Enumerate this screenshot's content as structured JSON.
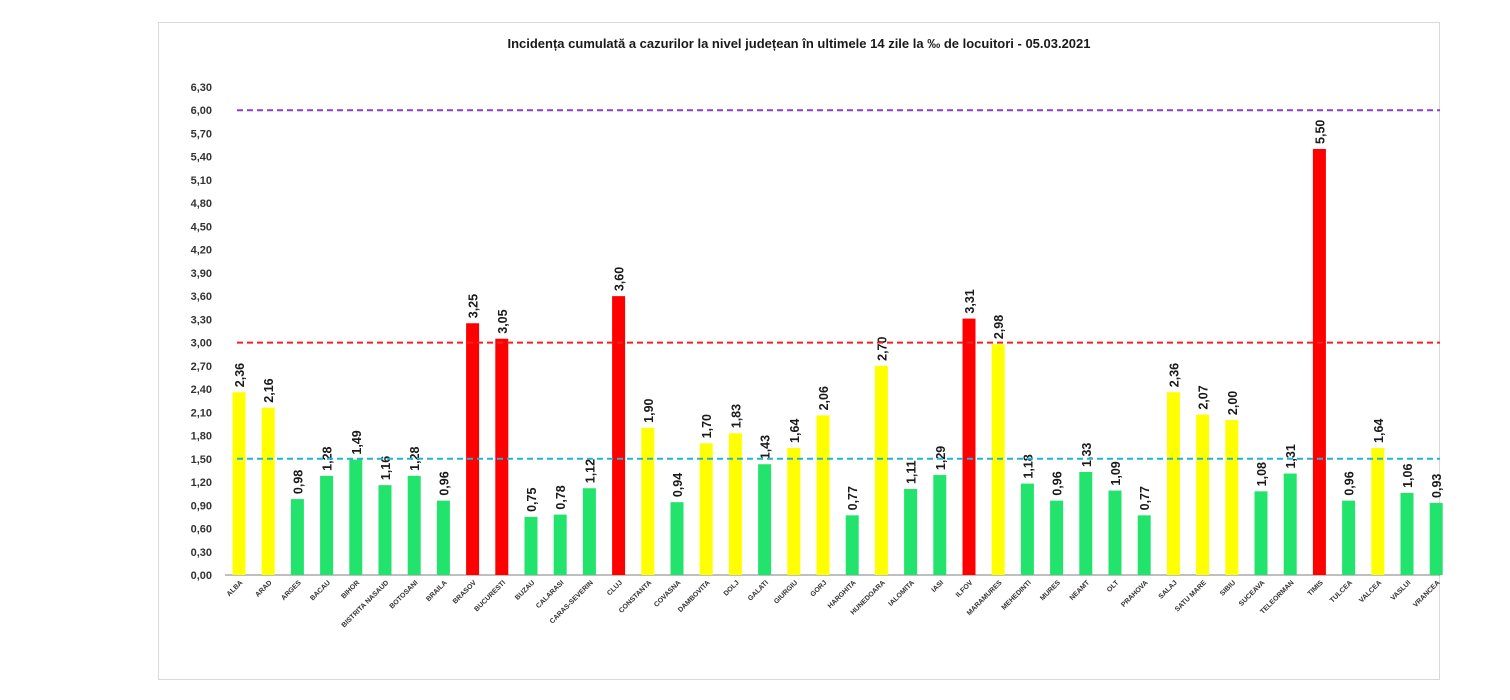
{
  "chart_data": {
    "type": "bar",
    "title": "Incidența cumulată a cazurilor la nivel județean în ultimele 14 zile la ‰ de locuitori - 05.03.2021",
    "xlabel": "",
    "ylabel": "",
    "ylim": [
      0,
      6.3
    ],
    "yticks": [
      "0,00",
      "0,30",
      "0,60",
      "0,90",
      "1,20",
      "1,50",
      "1,80",
      "2,10",
      "2,40",
      "2,70",
      "3,00",
      "3,30",
      "3,60",
      "3,90",
      "4,20",
      "4,50",
      "4,80",
      "5,10",
      "5,40",
      "5,70",
      "6,00",
      "6,30"
    ],
    "grid": false,
    "categories": [
      "ALBA",
      "ARAD",
      "ARGES",
      "BACAU",
      "BIHOR",
      "BISTRITA NASAUD",
      "BOTOSANI",
      "BRAILA",
      "BRASOV",
      "BUCURESTI",
      "BUZAU",
      "CALARASI",
      "CARAS-SEVERIN",
      "CLUJ",
      "CONSTANTA",
      "COVASNA",
      "DAMBOVITA",
      "DOLJ",
      "GALATI",
      "GIURGIU",
      "GORJ",
      "HARGHITA",
      "HUNEDOARA",
      "IALOMITA",
      "IASI",
      "ILFOV",
      "MARAMURES",
      "MEHEDINTI",
      "MURES",
      "NEAMT",
      "OLT",
      "PRAHOVA",
      "SALAJ",
      "SATU MARE",
      "SIBIU",
      "SUCEAVA",
      "TELEORMAN",
      "TIMIS",
      "TULCEA",
      "VALCEA",
      "VASLUI",
      "VRANCEA"
    ],
    "values": [
      2.36,
      2.16,
      0.98,
      1.28,
      1.49,
      1.16,
      1.28,
      0.96,
      3.25,
      3.05,
      0.75,
      0.78,
      1.12,
      3.6,
      1.9,
      0.94,
      1.7,
      1.83,
      1.43,
      1.64,
      2.06,
      0.77,
      2.7,
      1.11,
      1.29,
      3.31,
      2.98,
      1.18,
      0.96,
      1.33,
      1.09,
      0.77,
      2.36,
      2.07,
      2.0,
      1.08,
      1.31,
      5.5,
      0.96,
      1.64,
      1.06,
      0.93
    ],
    "value_labels": [
      "2,36",
      "2,16",
      "0,98",
      "1,28",
      "1,49",
      "1,16",
      "1,28",
      "0,96",
      "3,25",
      "3,05",
      "0,75",
      "0,78",
      "1,12",
      "3,60",
      "1,90",
      "0,94",
      "1,70",
      "1,83",
      "1,43",
      "1,64",
      "2,06",
      "0,77",
      "2,70",
      "1,11",
      "1,29",
      "3,31",
      "2,98",
      "1,18",
      "0,96",
      "1,33",
      "1,09",
      "0,77",
      "2,36",
      "2,07",
      "2,00",
      "1,08",
      "1,31",
      "5,50",
      "0,96",
      "1,64",
      "1,06",
      "0,93"
    ],
    "thresholds": [
      {
        "value": 1.5,
        "color": "#21b4d8",
        "style": "dashed"
      },
      {
        "value": 3.0,
        "color": "#ee2222",
        "style": "dashed"
      },
      {
        "value": 6.0,
        "color": "#8c3fc4",
        "style": "dashed"
      }
    ],
    "colors": {
      "green": "#22e36b",
      "yellow": "#ffff00",
      "red": "#ff0000",
      "axis": "#7f7f7f"
    }
  }
}
